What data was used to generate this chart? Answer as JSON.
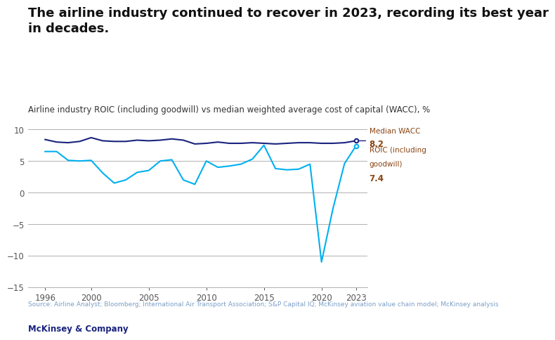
{
  "title": "The airline industry continued to recover in 2023, recording its best year\nin decades.",
  "subtitle": "Airline industry ROIC (including goodwill) vs median weighted average cost of capital (WACC), %",
  "source": "Source: Airline Analyst; Bloomberg; International Air Transport Association; S&P Capital IQ; McKinsey aviation value chain model; McKinsey analysis",
  "footer": "McKinsey & Company",
  "wacc_years": [
    1996,
    1997,
    1998,
    1999,
    2000,
    2001,
    2002,
    2003,
    2004,
    2005,
    2006,
    2007,
    2008,
    2009,
    2010,
    2011,
    2012,
    2013,
    2014,
    2015,
    2016,
    2017,
    2018,
    2019,
    2020,
    2021,
    2022,
    2023
  ],
  "wacc_values": [
    8.4,
    8.0,
    7.9,
    8.1,
    8.7,
    8.2,
    8.1,
    8.1,
    8.3,
    8.2,
    8.3,
    8.5,
    8.3,
    7.7,
    7.8,
    8.0,
    7.8,
    7.8,
    7.9,
    7.8,
    7.7,
    7.8,
    7.9,
    7.9,
    7.8,
    7.8,
    7.9,
    8.2
  ],
  "roic_years": [
    1996,
    1997,
    1998,
    1999,
    2000,
    2001,
    2002,
    2003,
    2004,
    2005,
    2006,
    2007,
    2008,
    2009,
    2010,
    2011,
    2012,
    2013,
    2014,
    2015,
    2016,
    2017,
    2018,
    2019,
    2020,
    2021,
    2022,
    2023
  ],
  "roic_values": [
    6.5,
    6.5,
    5.1,
    5.0,
    5.1,
    3.1,
    1.5,
    2.0,
    3.2,
    3.5,
    5.0,
    5.2,
    2.0,
    1.3,
    5.0,
    4.0,
    4.2,
    4.5,
    5.3,
    7.5,
    3.8,
    3.6,
    3.7,
    4.5,
    -11.0,
    -2.5,
    4.6,
    7.4
  ],
  "wacc_color": "#1a237e",
  "roic_color": "#00b0f0",
  "label_color": "#8B4513",
  "ylim": [
    -15,
    12
  ],
  "yticks": [
    -15,
    -10,
    -5,
    0,
    5,
    10
  ],
  "xticks": [
    1996,
    2000,
    2005,
    2010,
    2015,
    2020,
    2023
  ],
  "wacc_label": "Median WACC",
  "wacc_value_label": "8.2",
  "roic_label": "ROIC (including\ngoodwill)",
  "roic_value_label": "7.4",
  "bg_color": "#ffffff",
  "grid_color": "#b0b0b0",
  "title_fontsize": 13,
  "subtitle_fontsize": 8.5,
  "axis_fontsize": 8.5,
  "source_color": "#7b9fc7",
  "footer_color": "#1a237e"
}
